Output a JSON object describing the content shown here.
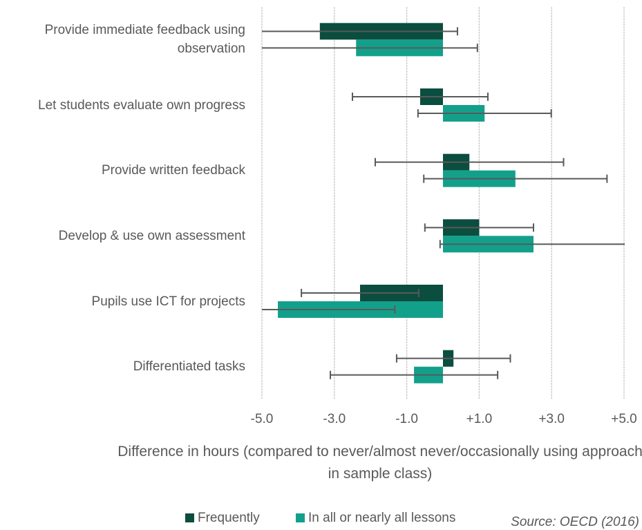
{
  "chart_data": {
    "type": "hbar-error",
    "categories": [
      "Provide immediate feedback using observation",
      "Let students evaluate own progress",
      "Provide written feedback",
      "Develop & use own assessment",
      "Pupils use ICT for projects",
      "Differentiated tasks"
    ],
    "series": [
      {
        "name": "Frequently",
        "color": "#0b4d3f",
        "values": [
          -3.4,
          -0.63,
          0.73,
          1.0,
          -2.29,
          0.29
        ],
        "errors": [
          3.8,
          1.87,
          2.6,
          1.5,
          1.62,
          1.57
        ]
      },
      {
        "name": "In all or nearly all lessons",
        "color": "#13a08b",
        "values": [
          -2.4,
          1.15,
          2.0,
          2.5,
          -4.56,
          -0.8
        ],
        "errors": [
          3.35,
          1.84,
          2.53,
          2.58,
          3.23,
          2.31
        ]
      }
    ],
    "xlim": [
      -5,
      5
    ],
    "xticks": [
      {
        "value": -5,
        "label": "-5.0"
      },
      {
        "value": -3,
        "label": "-3.0"
      },
      {
        "value": -1,
        "label": "-1.0"
      },
      {
        "value": 1,
        "label": "+1.0"
      },
      {
        "value": 3,
        "label": "+3.0"
      },
      {
        "value": 5,
        "label": "+5.0"
      }
    ],
    "grid": true,
    "x_label": "Difference in hours (compared to never/almost never/occasionally using approach in sample class)",
    "source": "Source: OECD (2016)"
  }
}
